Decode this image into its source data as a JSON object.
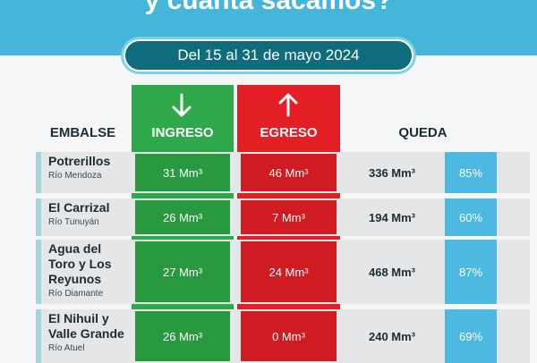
{
  "header": {
    "title": "y cuánta sacamos?",
    "period": "Del 15 al 31 de mayo 2024"
  },
  "table": {
    "columns": [
      "EMBALSE",
      "INGRESO",
      "EGRESO",
      "QUEDA"
    ],
    "rows": [
      {
        "name": "Potrerillos",
        "river": "Río Mendoza",
        "ingreso": "31 Mm³",
        "egreso": "46 Mm³",
        "queda": "336 Mm³",
        "percent": "85%"
      },
      {
        "name": "El Carrizal",
        "river": "Río Tunuyán",
        "ingreso": "26 Mm³",
        "egreso": "7 Mm³",
        "queda": "194 Mm³",
        "percent": "60%"
      },
      {
        "name": "Agua del Toro y Los Reyunos",
        "river": "Río Diamante",
        "ingreso": "27 Mm³",
        "egreso": "24 Mm³",
        "queda": "468 Mm³",
        "percent": "87%"
      },
      {
        "name": "El Nihuil y Valle Grande",
        "river": "Río Atuel",
        "ingreso": "26 Mm³",
        "egreso": "0 Mm³",
        "queda": "240 Mm³",
        "percent": "69%"
      }
    ]
  }
}
